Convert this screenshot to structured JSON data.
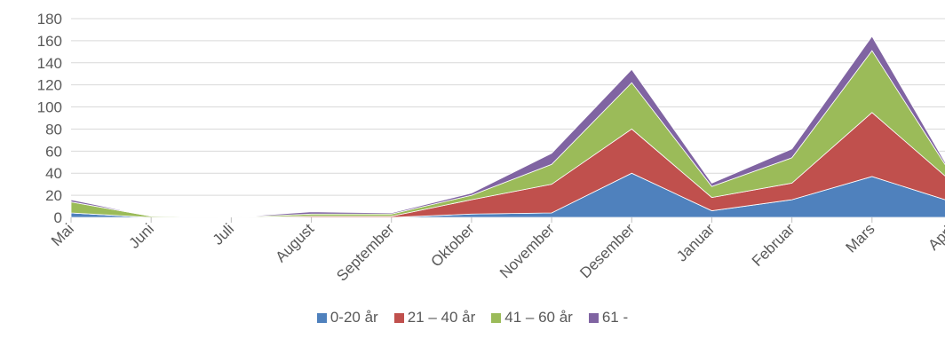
{
  "chart_data": {
    "type": "area",
    "stacked": true,
    "title": "",
    "xlabel": "",
    "ylabel": "",
    "ylim": [
      0,
      180
    ],
    "yticks": [
      0,
      20,
      40,
      60,
      80,
      100,
      120,
      140,
      160,
      180
    ],
    "grid": true,
    "legend_position": "bottom",
    "categories": [
      "Mai",
      "Juni",
      "Juli",
      "August",
      "September",
      "Oktober",
      "November",
      "Desember",
      "Januar",
      "Februar",
      "Mars",
      "April"
    ],
    "series": [
      {
        "name": "0-20 år",
        "color": "#4f81bd",
        "values": [
          4,
          0,
          0,
          0,
          0,
          3,
          4,
          40,
          6,
          16,
          37,
          14
        ]
      },
      {
        "name": "21 – 40 år",
        "color": "#c0504d",
        "values": [
          0,
          0,
          0,
          1,
          1,
          13,
          26,
          40,
          12,
          15,
          58,
          18
        ]
      },
      {
        "name": "41 – 60 år",
        "color": "#9bbb59",
        "values": [
          10,
          1,
          0,
          2,
          2,
          4,
          18,
          42,
          10,
          23,
          56,
          6
        ]
      },
      {
        "name": "61 -",
        "color": "#8064a2",
        "values": [
          2,
          0,
          0,
          2,
          1,
          2,
          10,
          12,
          3,
          8,
          13,
          1
        ]
      }
    ]
  }
}
